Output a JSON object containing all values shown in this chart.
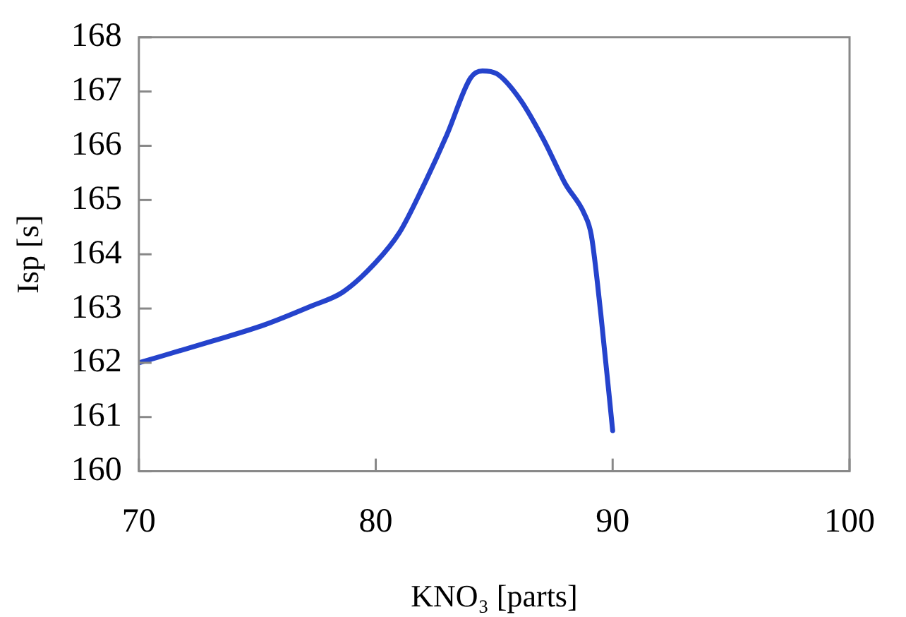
{
  "chart_data": {
    "type": "line",
    "xlabel": "KNO₃ [parts]",
    "ylabel": "Isp [s]",
    "x": [
      70,
      73.1,
      75.3,
      77.3,
      78.6,
      80,
      81,
      82,
      83,
      84,
      84.5,
      85.1,
      86.1,
      87.1,
      88,
      88.8,
      89.1,
      89.5,
      90
    ],
    "series": [
      {
        "color": "#2543cc",
        "values": [
          162,
          162.4,
          162.7,
          163.05,
          163.3,
          163.85,
          164.4,
          165.25,
          166.2,
          167.25,
          167.38,
          167.33,
          166.85,
          166.1,
          165.3,
          164.75,
          164.35,
          162.9,
          160.75
        ]
      }
    ],
    "xlim": [
      70,
      100
    ],
    "xticks": [
      70,
      80,
      90,
      100
    ],
    "ylim": [
      160,
      168
    ],
    "yticks": [
      160,
      161,
      162,
      163,
      164,
      165,
      166,
      167,
      168
    ],
    "grid": false,
    "legend": false,
    "marker": "none",
    "line_style": "solid"
  }
}
